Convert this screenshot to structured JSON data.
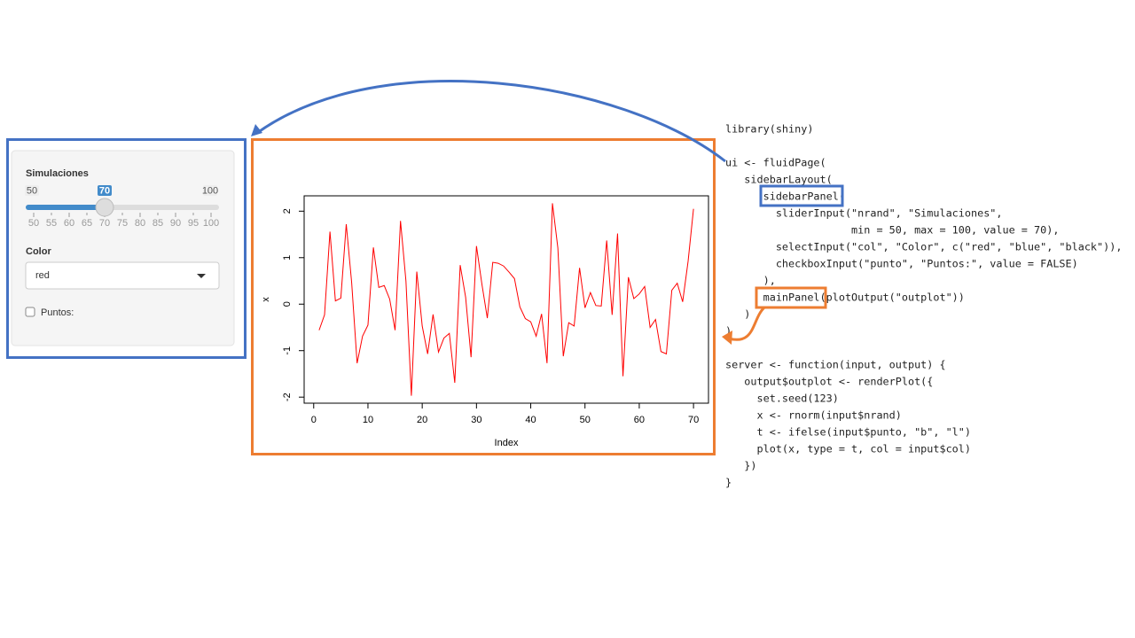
{
  "sidebar": {
    "slider": {
      "label": "Simulaciones",
      "min": 50,
      "max": 100,
      "value": 70,
      "ticks": [
        50,
        55,
        60,
        65,
        70,
        75,
        80,
        85,
        90,
        95,
        100
      ]
    },
    "select": {
      "label": "Color",
      "value": "red"
    },
    "checkbox": {
      "label": "Puntos:"
    }
  },
  "chart_data": {
    "type": "line",
    "xlabel": "Index",
    "ylabel": "x",
    "color": "#ff0000",
    "x": [
      1,
      2,
      3,
      4,
      5,
      6,
      7,
      8,
      9,
      10,
      11,
      12,
      13,
      14,
      15,
      16,
      17,
      18,
      19,
      20,
      21,
      22,
      23,
      24,
      25,
      26,
      27,
      28,
      29,
      30,
      31,
      32,
      33,
      34,
      35,
      36,
      37,
      38,
      39,
      40,
      41,
      42,
      43,
      44,
      45,
      46,
      47,
      48,
      49,
      50,
      51,
      52,
      53,
      54,
      55,
      56,
      57,
      58,
      59,
      60,
      61,
      62,
      63,
      64,
      65,
      66,
      67,
      68,
      69,
      70
    ],
    "values": [
      -0.56,
      -0.23,
      1.56,
      0.07,
      0.13,
      1.72,
      0.46,
      -1.27,
      -0.69,
      -0.45,
      1.22,
      0.36,
      0.4,
      0.11,
      -0.56,
      1.79,
      0.5,
      -1.97,
      0.7,
      -0.47,
      -1.07,
      -0.22,
      -1.03,
      -0.73,
      -0.63,
      -1.69,
      0.84,
      0.15,
      -1.14,
      1.25,
      0.43,
      -0.3,
      0.9,
      0.88,
      0.82,
      0.69,
      0.55,
      -0.06,
      -0.31,
      -0.38,
      -0.69,
      -0.21,
      -1.27,
      2.17,
      1.21,
      -1.12,
      -0.4,
      -0.47,
      0.78,
      -0.08,
      0.25,
      -0.03,
      -0.04,
      1.37,
      -0.23,
      1.52,
      -1.55,
      0.58,
      0.12,
      0.22,
      0.38,
      -0.5,
      -0.33,
      -1.02,
      -1.07,
      0.3,
      0.45,
      0.05,
      0.92,
      2.05
    ],
    "xlim": [
      -1.76,
      72.76
    ],
    "ylim": [
      -2.13,
      2.33
    ],
    "xticks": [
      0,
      10,
      20,
      30,
      40,
      50,
      60,
      70
    ],
    "yticks": [
      -2,
      -1,
      0,
      1,
      2
    ]
  },
  "code": {
    "blocks": [
      [
        "library(shiny)"
      ],
      [
        "ui <- fluidPage(",
        "   sidebarLayout(",
        "      sidebarPanel(",
        "        sliderInput(\"nrand\", \"Simulaciones\",",
        "                    min = 50, max = 100, value = 70),",
        "        selectInput(\"col\", \"Color\", c(\"red\", \"blue\", \"black\")),",
        "        checkboxInput(\"punto\", \"Puntos:\", value = FALSE)",
        "      ),",
        "      mainPanel(plotOutput(\"outplot\"))",
        "   )",
        ")"
      ],
      [
        "server <- function(input, output) {",
        "   output$outplot <- renderPlot({",
        "     set.seed(123)",
        "     x <- rnorm(input$nrand)",
        "     t <- ifelse(input$punto, \"b\", \"l\")",
        "     plot(x, type = t, col = input$col)",
        "   })",
        "}"
      ]
    ]
  }
}
